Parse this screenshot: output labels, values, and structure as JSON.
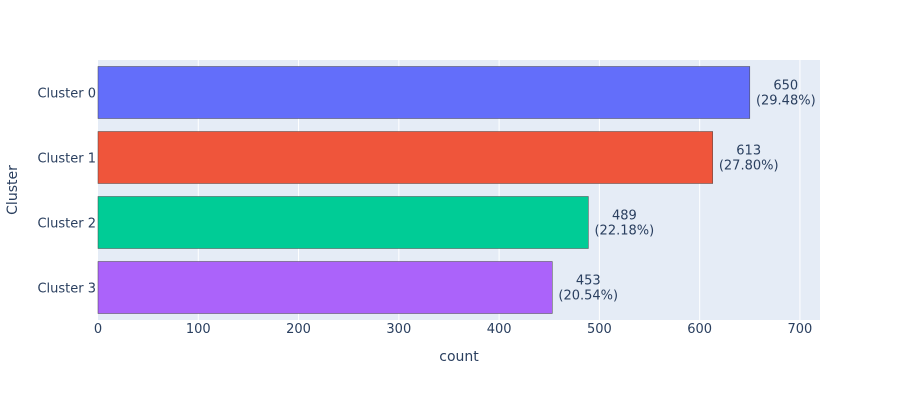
{
  "chart_data": {
    "type": "bar",
    "orientation": "horizontal",
    "categories": [
      "Cluster 0",
      "Cluster 1",
      "Cluster 2",
      "Cluster 3"
    ],
    "values": [
      650,
      613,
      489,
      453
    ],
    "percentages": [
      "29.48%",
      "27.80%",
      "22.18%",
      "20.54%"
    ],
    "colors": [
      "#636efa",
      "#ef553b",
      "#00cc96",
      "#ab63fa"
    ],
    "xlabel": "count",
    "ylabel": "Cluster",
    "xlim": [
      0,
      720
    ],
    "xticks": [
      0,
      100,
      200,
      300,
      400,
      500,
      600,
      700
    ],
    "grid": true,
    "plot_bgcolor": "#e5ecf6"
  }
}
